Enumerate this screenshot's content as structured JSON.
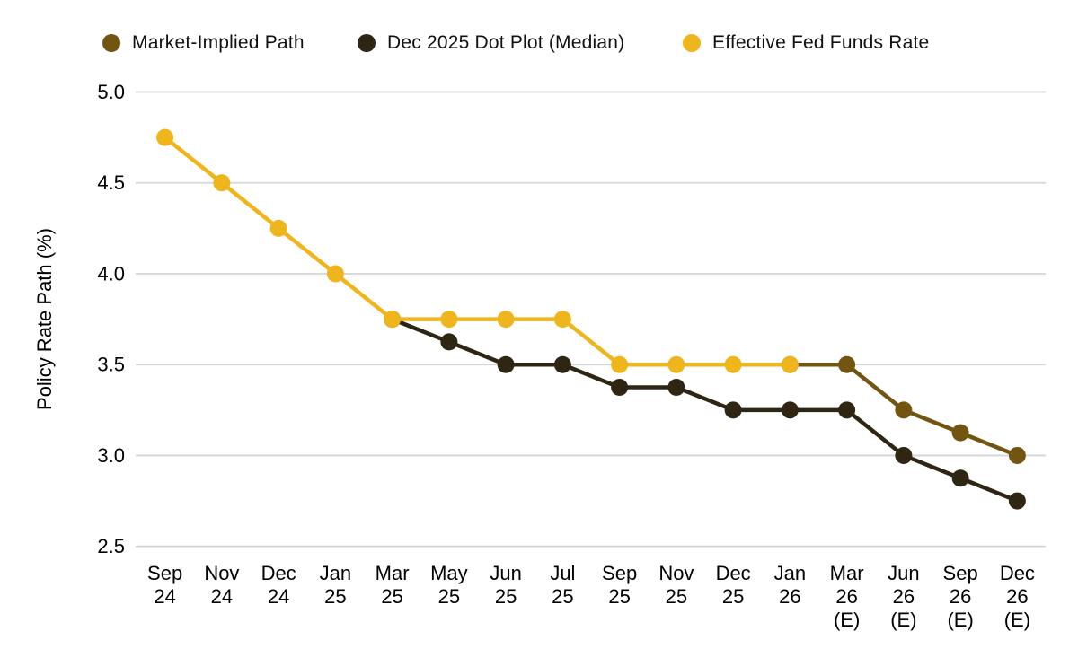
{
  "chart_data": {
    "type": "line",
    "title": "",
    "xlabel": "",
    "ylabel": "Policy Rate Path (%)",
    "ylim": [
      2.5,
      5.0
    ],
    "yticks": [
      "5.0",
      "4.5",
      "4.0",
      "3.5",
      "3.0",
      "2.5"
    ],
    "grid": "horizontal",
    "legend_position": "top",
    "categories": [
      "Sep 24",
      "Nov 24",
      "Dec 24",
      "Jan 25",
      "Mar 25",
      "May 25",
      "Jun 25",
      "Jul 25",
      "Sep 25",
      "Nov 25",
      "Dec 25",
      "Jan 26",
      "Mar 26 (E)",
      "Jun 26 (E)",
      "Sep 26 (E)",
      "Dec 26 (E)"
    ],
    "series": [
      {
        "name": "Market-Implied Path",
        "color": "#715511",
        "values": [
          null,
          null,
          null,
          null,
          null,
          null,
          null,
          null,
          null,
          null,
          null,
          3.5,
          3.5,
          3.25,
          3.125,
          3.0
        ]
      },
      {
        "name": "Dec 2025 Dot Plot (Median)",
        "color": "#2e2513",
        "values": [
          null,
          null,
          null,
          null,
          3.75,
          3.625,
          3.5,
          3.5,
          3.375,
          3.375,
          3.25,
          3.25,
          3.25,
          3.0,
          2.875,
          2.75
        ]
      },
      {
        "name": "Effective Fed Funds Rate",
        "color": "#efb51d",
        "values": [
          4.75,
          4.5,
          4.25,
          4.0,
          3.75,
          3.75,
          3.75,
          3.75,
          3.5,
          3.5,
          3.5,
          3.5,
          null,
          null,
          null,
          null
        ]
      }
    ],
    "colors": {
      "gridline": "#d5d5d5",
      "tick_text": "#000000",
      "background": "#ffffff"
    }
  }
}
